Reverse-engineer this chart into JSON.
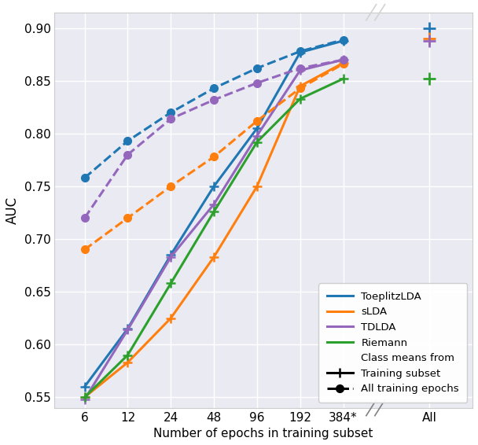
{
  "x_labels": [
    "6",
    "12",
    "24",
    "48",
    "96",
    "192",
    "384*",
    "All"
  ],
  "x_positions": [
    1,
    2,
    3,
    4,
    5,
    6,
    7,
    9
  ],
  "x_subset_pos": [
    1,
    2,
    3,
    4,
    5,
    6,
    7
  ],
  "toeplitz_solid": [
    0.56,
    0.615,
    0.685,
    0.75,
    0.805,
    0.877,
    0.888
  ],
  "toeplitz_all": [
    0.9
  ],
  "slda_solid": [
    0.55,
    0.583,
    0.625,
    0.683,
    0.75,
    0.845,
    0.867
  ],
  "slda_all": [
    0.89
  ],
  "tdlda_solid": [
    0.548,
    0.614,
    0.683,
    0.733,
    0.798,
    0.86,
    0.87
  ],
  "tdlda_all": [
    0.888
  ],
  "riemann_solid": [
    0.55,
    0.59,
    0.658,
    0.726,
    0.792,
    0.833,
    0.852
  ],
  "riemann_all": [
    0.852
  ],
  "toeplitz_dashed": [
    0.758,
    0.793,
    0.82,
    0.843,
    0.862,
    0.878,
    0.889
  ],
  "slda_dashed": [
    0.69,
    0.72,
    0.75,
    0.778,
    0.812,
    0.843,
    0.866
  ],
  "tdlda_dashed": [
    0.72,
    0.78,
    0.814,
    0.832,
    0.848,
    0.862,
    0.87
  ],
  "color_toeplitz": "#1f77b4",
  "color_slda": "#ff7f0e",
  "color_tdlda": "#9467bd",
  "color_riemann": "#2ca02c",
  "ylim": [
    0.54,
    0.915
  ],
  "yticks": [
    0.55,
    0.6,
    0.65,
    0.7,
    0.75,
    0.8,
    0.85,
    0.9
  ],
  "ylabel": "AUC",
  "xlabel": "Number of epochs in training subset",
  "bg_color": "#eaeaf2",
  "grid_color": "#ffffff"
}
